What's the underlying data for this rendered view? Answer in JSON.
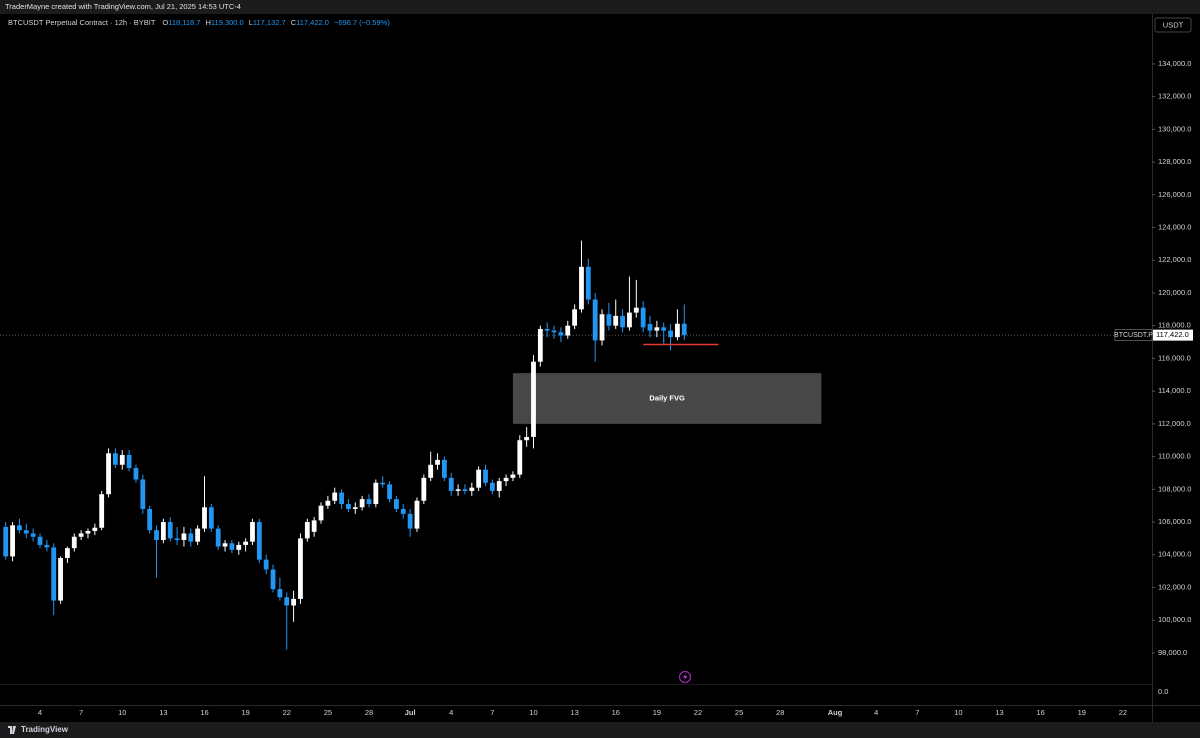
{
  "header": {
    "text": "TraderMayne created with TradingView.com, Jul 21, 2025 14:53 UTC-4"
  },
  "footer": {
    "brand": "TradingView"
  },
  "chart_data": {
    "type": "candlestick",
    "legend": {
      "symbol": "BTCUSDT Perpetual Contract · 12h · BYBIT",
      "fields": [
        {
          "key": "O",
          "value": "118,118.7"
        },
        {
          "key": "H",
          "value": "119,300.0"
        },
        {
          "key": "L",
          "value": "117,132.7"
        },
        {
          "key": "C",
          "value": "117,422.0"
        }
      ],
      "change": "−696.7 (−0.59%)"
    },
    "currency": "USDT",
    "categories": [
      null,
      null,
      null,
      null,
      null,
      "4",
      null,
      null,
      null,
      null,
      null,
      "7",
      null,
      null,
      null,
      null,
      null,
      "10",
      null,
      null,
      null,
      null,
      null,
      "13",
      null,
      null,
      null,
      null,
      null,
      "16",
      null,
      null,
      null,
      null,
      null,
      "19",
      null,
      null,
      null,
      null,
      null,
      "22",
      null,
      null,
      null,
      null,
      null,
      "25",
      null,
      null,
      null,
      null,
      null,
      "28",
      null,
      null,
      null,
      null,
      null,
      "Jul",
      null,
      null,
      null,
      null,
      null,
      "4",
      null,
      null,
      null,
      null,
      null,
      "7",
      null,
      null,
      null,
      null,
      null,
      "10",
      null,
      null,
      null,
      null,
      null,
      "13",
      null,
      null,
      null,
      null,
      null,
      "16",
      null,
      null,
      null,
      null,
      null,
      "19",
      null,
      null,
      null,
      null,
      null,
      "22",
      null,
      null,
      null,
      null,
      null,
      "25",
      null,
      null,
      null,
      null,
      null,
      "28",
      null,
      null,
      null,
      null,
      null,
      null,
      null,
      "Aug",
      null,
      null,
      null,
      null,
      null,
      "4",
      null,
      null,
      null,
      null,
      null,
      "7",
      null,
      null,
      null,
      null,
      null,
      "10",
      null,
      null,
      null,
      null,
      null,
      "13",
      null,
      null,
      null,
      null,
      null,
      "16",
      null,
      null,
      null,
      null,
      null,
      "19",
      null,
      null,
      null,
      null,
      null,
      "22",
      null,
      null,
      null
    ],
    "open": [
      105700,
      103900,
      105800,
      105500,
      105300,
      105100,
      104600,
      104450,
      101200,
      103800,
      104400,
      105100,
      105300,
      105450,
      105650,
      107700,
      110200,
      109500,
      110100,
      109300,
      108600,
      106800,
      105500,
      104900,
      106000,
      105000,
      104900,
      105300,
      104800,
      105600,
      106900,
      105600,
      104500,
      104700,
      104300,
      104600,
      104800,
      106000,
      103700,
      103100,
      101900,
      101400,
      100900,
      101300,
      105000,
      105400,
      106100,
      107000,
      107300,
      107800,
      107100,
      106800,
      106900,
      107400,
      107100,
      108400,
      108300,
      107400,
      106800,
      106500,
      105600,
      107300,
      108700,
      109500,
      109800,
      108700,
      107900,
      108000,
      107900,
      108100,
      109200,
      108400,
      107900,
      108500,
      108700,
      108900,
      111000,
      111200,
      115800,
      117800,
      117700,
      117600,
      117400,
      118000,
      119000,
      121600,
      119600,
      117100,
      118700,
      118000,
      118600,
      117900,
      118800,
      119100,
      118100,
      117700,
      117900,
      117700,
      117300,
      118118.7,
      null,
      null,
      null,
      null,
      null,
      null,
      null,
      null,
      null,
      null,
      null,
      null,
      null,
      null,
      null,
      null,
      null,
      null,
      null,
      null,
      null,
      null,
      null,
      null,
      null,
      null,
      null,
      null,
      null,
      null,
      null,
      null,
      null,
      null,
      null,
      null,
      null,
      null,
      null,
      null,
      null,
      null,
      null,
      null,
      null,
      null,
      null,
      null,
      null,
      null,
      null,
      null,
      null,
      null,
      null,
      null,
      null,
      null,
      null,
      null,
      null,
      null,
      null,
      null,
      null,
      null,
      null
    ],
    "high": [
      106000,
      106000,
      106200,
      105900,
      105600,
      105300,
      104900,
      104700,
      103900,
      104500,
      105300,
      105500,
      105600,
      105900,
      107900,
      110500,
      110500,
      110400,
      110400,
      109500,
      108900,
      107000,
      105800,
      106200,
      106300,
      105700,
      105700,
      105600,
      105800,
      108800,
      107100,
      105800,
      104900,
      104900,
      104800,
      105000,
      106200,
      106200,
      104000,
      103400,
      102600,
      101700,
      101800,
      105300,
      106200,
      106300,
      107200,
      107600,
      108100,
      108000,
      107400,
      107200,
      107600,
      107700,
      108600,
      108800,
      108500,
      107600,
      107100,
      106800,
      107500,
      108900,
      110300,
      110200,
      110000,
      109000,
      108300,
      108300,
      108400,
      109400,
      109500,
      108600,
      108700,
      108900,
      109100,
      111300,
      111800,
      116200,
      118000,
      118200,
      118000,
      117900,
      118300,
      119300,
      123200,
      122100,
      120000,
      119000,
      119400,
      119600,
      119000,
      121000,
      120800,
      119500,
      118600,
      118300,
      118200,
      118100,
      119000,
      119300,
      null,
      null,
      null,
      null,
      null,
      null,
      null,
      null,
      null,
      null,
      null,
      null,
      null,
      null,
      null,
      null,
      null,
      null,
      null,
      null,
      null,
      null,
      null,
      null,
      null,
      null,
      null,
      null,
      null,
      null,
      null,
      null,
      null,
      null,
      null,
      null,
      null,
      null,
      null,
      null,
      null,
      null,
      null,
      null,
      null,
      null,
      null,
      null,
      null,
      null,
      null,
      null,
      null,
      null,
      null,
      null,
      null,
      null,
      null,
      null,
      null,
      null,
      null,
      null,
      null,
      null,
      null
    ],
    "low": [
      103700,
      103600,
      105300,
      105000,
      104800,
      104400,
      104200,
      100300,
      101000,
      103500,
      104200,
      104900,
      105000,
      105200,
      105500,
      107500,
      109300,
      109200,
      109100,
      108400,
      106500,
      105300,
      102600,
      104700,
      104800,
      104600,
      104500,
      104500,
      104600,
      105400,
      105400,
      104300,
      104200,
      104100,
      104000,
      104200,
      104600,
      103500,
      102800,
      101700,
      101200,
      98200,
      99900,
      101000,
      104800,
      105100,
      105900,
      106800,
      107100,
      106800,
      106600,
      106500,
      106700,
      106900,
      106900,
      108100,
      107200,
      106600,
      106200,
      105100,
      105400,
      107100,
      108500,
      109200,
      108500,
      107600,
      107600,
      107700,
      107600,
      107900,
      108200,
      107700,
      107500,
      108200,
      108500,
      108700,
      110600,
      110500,
      115500,
      117300,
      117200,
      117000,
      117200,
      117800,
      118800,
      119300,
      115800,
      116800,
      117700,
      117800,
      117600,
      117700,
      118500,
      117600,
      117300,
      117300,
      116900,
      116500,
      117100,
      117132.7,
      null,
      null,
      null,
      null,
      null,
      null,
      null,
      null,
      null,
      null,
      null,
      null,
      null,
      null,
      null,
      null,
      null,
      null,
      null,
      null,
      null,
      null,
      null,
      null,
      null,
      null,
      null,
      null,
      null,
      null,
      null,
      null,
      null,
      null,
      null,
      null,
      null,
      null,
      null,
      null,
      null,
      null,
      null,
      null,
      null,
      null,
      null,
      null,
      null,
      null,
      null,
      null,
      null,
      null,
      null,
      null,
      null,
      null,
      null,
      null,
      null,
      null,
      null,
      null,
      null,
      null,
      null
    ],
    "close": [
      103900,
      105800,
      105500,
      105300,
      105100,
      104600,
      104450,
      101200,
      103800,
      104400,
      105100,
      105300,
      105450,
      105650,
      107700,
      110200,
      109500,
      110100,
      109300,
      108600,
      106800,
      105500,
      104900,
      106000,
      105000,
      104900,
      105300,
      104800,
      105600,
      106900,
      105600,
      104500,
      104700,
      104300,
      104600,
      104800,
      106000,
      103700,
      103100,
      101900,
      101400,
      100900,
      101300,
      105000,
      106000,
      106100,
      107000,
      107300,
      107800,
      107100,
      106800,
      106900,
      107400,
      107100,
      108400,
      108300,
      107400,
      106800,
      106500,
      105600,
      107300,
      108700,
      109500,
      109800,
      108700,
      107900,
      108000,
      107900,
      108100,
      109200,
      108400,
      107900,
      108500,
      108700,
      108900,
      111000,
      111200,
      115800,
      117800,
      117700,
      117600,
      117400,
      118000,
      119000,
      121600,
      119600,
      117100,
      118700,
      118000,
      118600,
      117900,
      118800,
      119100,
      117900,
      117700,
      117900,
      117700,
      117300,
      118120,
      117422,
      null,
      null,
      null,
      null,
      null,
      null,
      null,
      null,
      null,
      null,
      null,
      null,
      null,
      null,
      null,
      null,
      null,
      null,
      null,
      null,
      null,
      null,
      null,
      null,
      null,
      null,
      null,
      null,
      null,
      null,
      null,
      null,
      null,
      null,
      null,
      null,
      null,
      null,
      null,
      null,
      null,
      null,
      null,
      null,
      null,
      null,
      null,
      null,
      null,
      null,
      null,
      null,
      null,
      null,
      null,
      null,
      null,
      null,
      null,
      null,
      null,
      null,
      null,
      null,
      null,
      null,
      null
    ],
    "up_color": "#ffffff",
    "down_color": "#2196f3",
    "ylim": [
      96100,
      137050
    ],
    "yticks": [
      {
        "value": 98000,
        "label": "98,000.0"
      },
      {
        "value": 100000,
        "label": "100,000.0"
      },
      {
        "value": 102000,
        "label": "102,000.0"
      },
      {
        "value": 104000,
        "label": "104,000.0"
      },
      {
        "value": 106000,
        "label": "106,000.0"
      },
      {
        "value": 108000,
        "label": "108,000.0"
      },
      {
        "value": 110000,
        "label": "110,000.0"
      },
      {
        "value": 112000,
        "label": "112,000.0"
      },
      {
        "value": 114000,
        "label": "114,000.0"
      },
      {
        "value": 116000,
        "label": "116,000.0"
      },
      {
        "value": 118000,
        "label": "118,000.0"
      },
      {
        "value": 120000,
        "label": "120,000.0"
      },
      {
        "value": 122000,
        "label": "122,000.0"
      },
      {
        "value": 124000,
        "label": "124,000.0"
      },
      {
        "value": 126000,
        "label": "126,000.0"
      },
      {
        "value": 128000,
        "label": "128,000.0"
      },
      {
        "value": 130000,
        "label": "130,000.0"
      },
      {
        "value": 132000,
        "label": "132,000.0"
      },
      {
        "value": 134000,
        "label": "134,000.0"
      }
    ],
    "floor_tick": {
      "value": 0,
      "label": "0.0"
    },
    "last_price": {
      "value": 117422,
      "label": "117,422.0",
      "symbol": "BTCUSDT.P"
    },
    "zone": {
      "label": "Daily FVG",
      "low": 112000,
      "high": 115100,
      "color": "#555555"
    },
    "level": {
      "value": 116850,
      "color": "#e53935"
    }
  }
}
